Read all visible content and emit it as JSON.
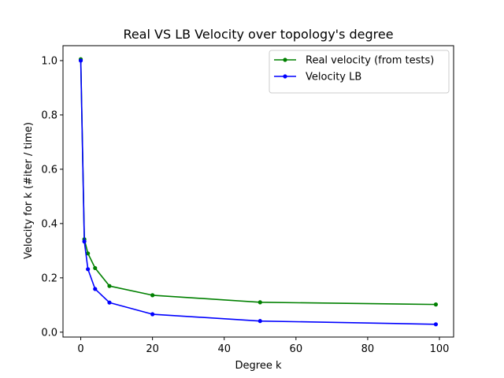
{
  "chart_data": {
    "type": "line",
    "title": "Real VS LB Velocity over topology's degree",
    "xlabel": "Degree k",
    "ylabel": "Velocity for k (#iter / time)",
    "xlim": [
      -4.95,
      103.95
    ],
    "ylim": [
      -0.018,
      1.055
    ],
    "xticks": [
      0,
      20,
      40,
      60,
      80,
      100
    ],
    "yticks": [
      0.0,
      0.2,
      0.4,
      0.6,
      0.8,
      1.0
    ],
    "xtick_labels": [
      "0",
      "20",
      "40",
      "60",
      "80",
      "100"
    ],
    "ytick_labels": [
      "0.0",
      "0.2",
      "0.4",
      "0.6",
      "0.8",
      "1.0"
    ],
    "grid": false,
    "legend_position": "top-right",
    "series": [
      {
        "name": "Real velocity (from tests)",
        "color": "#008000",
        "x": [
          0,
          1,
          2,
          4,
          8,
          20,
          50,
          99
        ],
        "y": [
          1.005,
          0.342,
          0.29,
          0.236,
          0.17,
          0.136,
          0.11,
          0.102
        ]
      },
      {
        "name": "Velocity LB",
        "color": "#0000ff",
        "x": [
          0,
          1,
          2,
          4,
          8,
          20,
          50,
          99
        ],
        "y": [
          1.0,
          0.334,
          0.232,
          0.159,
          0.109,
          0.066,
          0.041,
          0.029
        ]
      }
    ]
  }
}
